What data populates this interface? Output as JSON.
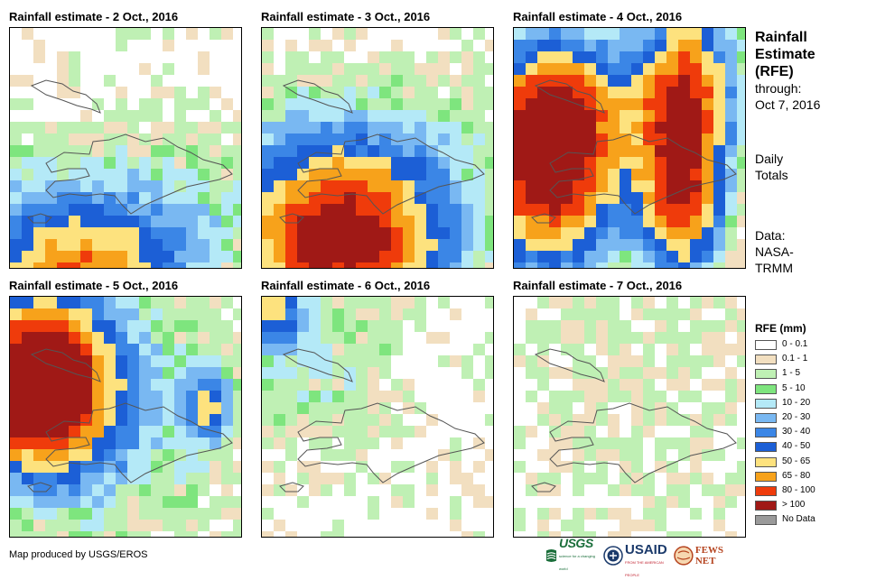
{
  "panels": [
    {
      "title": "Rainfall estimate - 2 Oct., 2016"
    },
    {
      "title": "Rainfall estimate - 3 Oct., 2016"
    },
    {
      "title": "Rainfall estimate - 4 Oct., 2016"
    },
    {
      "title": "Rainfall estimate - 5 Oct., 2016"
    },
    {
      "title": "Rainfall estimate - 6 Oct., 2016"
    },
    {
      "title": "Rainfall estimate - 7 Oct., 2016"
    }
  ],
  "side": {
    "title_line1": "Rainfall",
    "title_line2": "Estimate",
    "title_line3": "(RFE)",
    "through": "through:",
    "date": "Oct 7, 2016",
    "daily1": "Daily",
    "daily2": "Totals",
    "data1": "Data:",
    "data2": "NASA-",
    "data3": "TRMM"
  },
  "legend": {
    "title": "RFE (mm)",
    "items": [
      {
        "label": "0 - 0.1",
        "color": "#ffffff"
      },
      {
        "label": "0.1 - 1",
        "color": "#f2dfc0"
      },
      {
        "label": "1 - 5",
        "color": "#bff0b4"
      },
      {
        "label": "5 - 10",
        "color": "#7ee57e"
      },
      {
        "label": "10 - 20",
        "color": "#b4e9f7"
      },
      {
        "label": "20 - 30",
        "color": "#79b8f2"
      },
      {
        "label": "30 - 40",
        "color": "#3b86e6"
      },
      {
        "label": "40 - 50",
        "color": "#1c5fd6"
      },
      {
        "label": "50 - 65",
        "color": "#fde27e"
      },
      {
        "label": "65 - 80",
        "color": "#f7a21b"
      },
      {
        "label": "80 - 100",
        "color": "#ef3b0b"
      },
      {
        "label": "> 100",
        "color": "#a01916"
      },
      {
        "label": "No Data",
        "color": "#9a9a9a"
      }
    ]
  },
  "credit": "Map produced by USGS/EROS",
  "logos": {
    "usgs": "USGS",
    "usgs_tag": "science for a changing world",
    "usaid": "USAID",
    "usaid_tag": "FROM THE AMERICAN PEOPLE",
    "fews": "FEWS NET"
  }
}
